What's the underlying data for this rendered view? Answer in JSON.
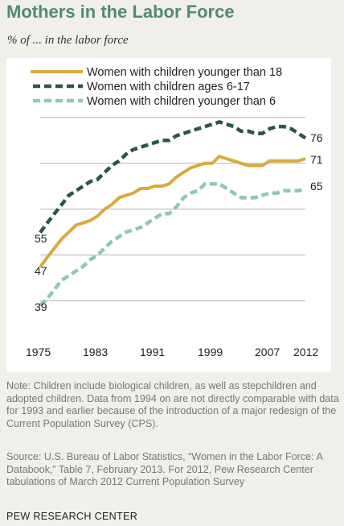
{
  "header": {
    "title": "Mothers in the Labor Force",
    "subtitle": "% of ... in the labor force"
  },
  "legend": {
    "items": [
      {
        "label": "Women with children younger than 18",
        "color": "#d9ab3d",
        "style": "solid"
      },
      {
        "label": "Women with children ages 6-17",
        "color": "#2c5742",
        "style": "dashed"
      },
      {
        "label": "Women with children younger than 6",
        "color": "#8ec9b3",
        "style": "dashed"
      }
    ]
  },
  "chart_data": {
    "type": "line",
    "x": [
      1975,
      1976,
      1977,
      1978,
      1979,
      1980,
      1981,
      1982,
      1983,
      1984,
      1985,
      1986,
      1987,
      1988,
      1989,
      1990,
      1991,
      1992,
      1993,
      1994,
      1995,
      1996,
      1997,
      1998,
      1999,
      2000,
      2001,
      2002,
      2003,
      2004,
      2005,
      2006,
      2007,
      2008,
      2009,
      2010,
      2011,
      2012
    ],
    "series": [
      {
        "name": "Women with children younger than 18",
        "color": "#d9ab3d",
        "dash": "solid",
        "values": [
          47.4,
          49.5,
          51.5,
          53.5,
          55.0,
          56.5,
          57.0,
          57.5,
          58.5,
          60.0,
          61.0,
          62.5,
          63.0,
          63.5,
          64.5,
          64.5,
          65.0,
          65.0,
          65.5,
          67.0,
          68.0,
          69.0,
          69.5,
          70.0,
          70.0,
          71.5,
          71.0,
          70.5,
          70.0,
          69.5,
          69.5,
          69.5,
          70.5,
          70.5,
          70.5,
          70.5,
          70.5,
          71.0
        ]
      },
      {
        "name": "Women with children ages 6-17",
        "color": "#2c5742",
        "dash": "dashed",
        "values": [
          54.9,
          57.0,
          59.0,
          61.0,
          63.0,
          64.0,
          65.0,
          66.0,
          66.5,
          68.0,
          69.5,
          70.5,
          72.0,
          73.0,
          73.5,
          74.0,
          74.5,
          75.0,
          75.0,
          76.0,
          76.5,
          77.0,
          77.5,
          78.0,
          78.5,
          79.0,
          78.5,
          78.0,
          77.0,
          77.0,
          76.5,
          76.5,
          77.5,
          78.0,
          78.0,
          77.5,
          76.5,
          75.5
        ]
      },
      {
        "name": "Women with children younger than 6",
        "color": "#8ec9b3",
        "dash": "dashed",
        "values": [
          39.0,
          40.5,
          42.5,
          44.5,
          45.5,
          46.5,
          47.5,
          49.0,
          50.0,
          51.5,
          53.0,
          54.0,
          55.0,
          55.5,
          56.0,
          57.0,
          58.0,
          59.0,
          59.0,
          60.5,
          62.5,
          63.5,
          64.0,
          65.5,
          65.5,
          65.5,
          64.5,
          63.5,
          62.5,
          62.5,
          62.5,
          63.0,
          63.5,
          63.5,
          64.0,
          64.0,
          64.0,
          64.5
        ]
      }
    ],
    "xticks": [
      "1975",
      "1983",
      "1991",
      "1999",
      "2007",
      "2012"
    ],
    "start_labels": [
      "55",
      "47",
      "39"
    ],
    "end_labels": [
      "76",
      "71",
      "65"
    ],
    "ylim": [
      35,
      81
    ],
    "grid": true
  },
  "notes": {
    "note": "Note: Children include biological children, as well as stepchildren and adopted children. Data from 1994 on are not directly comparable with data for 1993 and earlier because of the introduction of a major redesign of the Current Population Survey (CPS).",
    "source": "Source: U.S. Bureau of Labor Statistics, “Women in the Labor Force: A Databook,” Table 7, February 2013. For 2012, Pew Research Center tabulations of March 2012 Current Population Survey"
  },
  "footer": "PEW RESEARCH CENTER"
}
